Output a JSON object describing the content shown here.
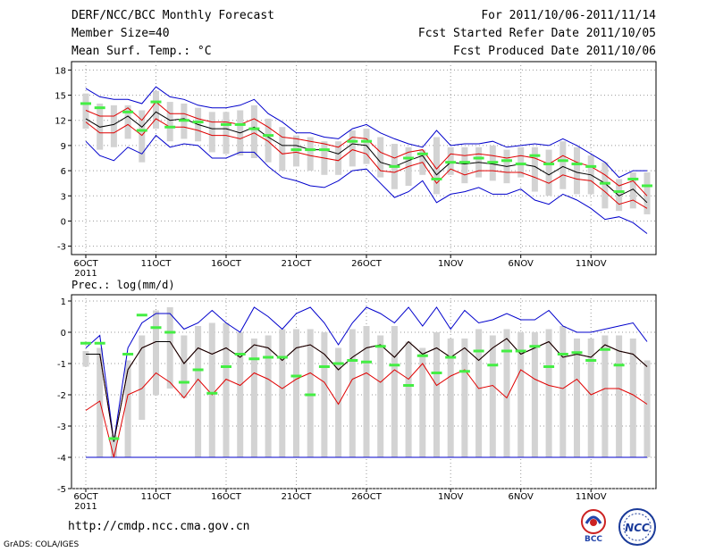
{
  "header": {
    "left": [
      "DERF/NCC/BCC Monthly Forecast",
      "Member Size=40",
      "Mean Surf. Temp.: °C"
    ],
    "right": [
      "For 2011/10/06-2011/11/14",
      "Fcst Started Refer Date 2011/10/05",
      "Fcst Produced Date 2011/10/06"
    ]
  },
  "footer": {
    "url": "http://cmdp.ncc.cma.gov.cn",
    "credit": "GrADS: COLA/IGES",
    "logo_bcc": "BCC",
    "logo_ncc": "NCC"
  },
  "colors": {
    "max": "#0000cc",
    "min": "#0000cc",
    "mean": "#000000",
    "p75": "#e00000",
    "p25": "#e00000",
    "box": "#d3d3d3",
    "marker": "#44ee44"
  },
  "chart_data": [
    {
      "id": "temp",
      "type": "line",
      "title": "Mean Surf. Temp.: °C",
      "ylim": [
        -4,
        19
      ],
      "yticks": [
        -3,
        0,
        3,
        6,
        9,
        12,
        15,
        18
      ],
      "xlim": [
        0,
        40
      ],
      "xticks": [
        {
          "day": 0,
          "label": "6OCT"
        },
        {
          "day": 5,
          "label": "11OCT"
        },
        {
          "day": 10,
          "label": "16OCT"
        },
        {
          "day": 15,
          "label": "21OCT"
        },
        {
          "day": 20,
          "label": "26OCT"
        },
        {
          "day": 26,
          "label": "1NOV"
        },
        {
          "day": 31,
          "label": "6NOV"
        },
        {
          "day": 36,
          "label": "11NOV"
        }
      ],
      "xyear": "2011",
      "max": [
        15.8,
        14.8,
        14.5,
        14.5,
        14.0,
        16.0,
        14.8,
        14.5,
        13.8,
        13.5,
        13.5,
        13.8,
        14.5,
        12.8,
        11.8,
        10.5,
        10.5,
        10.0,
        9.8,
        11.0,
        11.5,
        10.5,
        9.8,
        9.2,
        8.8,
        10.8,
        9.0,
        9.2,
        9.2,
        9.5,
        8.8,
        9.0,
        9.2,
        9.0,
        9.8,
        9.0,
        8.0,
        7.0,
        5.2,
        6.0,
        6.0
      ],
      "p75": [
        13.2,
        12.5,
        12.5,
        13.5,
        12.0,
        14.2,
        12.8,
        12.8,
        12.2,
        11.8,
        11.8,
        11.5,
        12.2,
        11.2,
        10.0,
        9.8,
        9.5,
        9.2,
        8.8,
        10.0,
        9.8,
        8.2,
        7.5,
        8.2,
        8.5,
        6.2,
        8.0,
        7.8,
        8.0,
        7.8,
        7.5,
        7.8,
        7.5,
        6.8,
        7.8,
        7.0,
        6.5,
        5.5,
        4.2,
        4.8,
        3.0
      ],
      "mean": [
        12.2,
        11.2,
        11.5,
        12.5,
        11.2,
        13.0,
        12.0,
        12.2,
        11.5,
        11.0,
        11.0,
        10.5,
        11.2,
        10.0,
        9.0,
        9.0,
        8.5,
        8.5,
        8.0,
        9.2,
        9.0,
        7.0,
        6.5,
        7.2,
        7.8,
        5.5,
        7.0,
        6.8,
        7.0,
        6.8,
        6.5,
        6.8,
        6.5,
        5.5,
        6.5,
        5.8,
        5.5,
        4.5,
        3.0,
        3.8,
        2.2
      ],
      "p25": [
        11.8,
        10.5,
        10.5,
        11.5,
        10.2,
        12.2,
        11.2,
        11.2,
        10.8,
        10.2,
        10.2,
        9.8,
        10.5,
        9.5,
        8.0,
        8.2,
        7.8,
        7.5,
        7.2,
        8.5,
        8.0,
        6.0,
        5.8,
        6.5,
        7.0,
        4.5,
        6.2,
        5.5,
        6.0,
        6.0,
        5.8,
        5.8,
        5.2,
        4.5,
        5.5,
        5.0,
        4.8,
        3.5,
        2.0,
        2.5,
        1.5
      ],
      "min": [
        9.5,
        7.8,
        7.2,
        8.8,
        8.0,
        10.2,
        8.8,
        9.2,
        9.0,
        7.5,
        7.5,
        8.2,
        8.2,
        6.5,
        5.2,
        4.8,
        4.2,
        4.0,
        4.8,
        6.0,
        6.2,
        4.5,
        2.8,
        3.5,
        4.8,
        2.2,
        3.2,
        3.5,
        4.0,
        3.2,
        3.2,
        3.8,
        2.5,
        2.0,
        3.2,
        2.5,
        1.5,
        0.2,
        0.5,
        -0.2,
        -1.5
      ],
      "box_hi": [
        15.2,
        14.0,
        13.8,
        13.8,
        13.2,
        15.5,
        14.2,
        14.0,
        13.5,
        13.0,
        13.0,
        13.2,
        13.8,
        12.2,
        11.2,
        10.2,
        10.0,
        9.5,
        9.5,
        10.8,
        11.0,
        10.0,
        9.2,
        8.8,
        8.5,
        10.0,
        8.8,
        8.8,
        8.8,
        9.0,
        8.5,
        8.8,
        8.8,
        8.5,
        9.5,
        8.8,
        7.8,
        7.0,
        5.0,
        5.8,
        5.8
      ],
      "box_lo": [
        11.0,
        8.5,
        8.8,
        9.8,
        7.0,
        11.0,
        9.5,
        9.8,
        9.5,
        8.2,
        8.0,
        7.8,
        7.5,
        7.0,
        6.0,
        6.5,
        6.0,
        5.5,
        5.5,
        6.5,
        6.8,
        5.2,
        3.8,
        4.2,
        5.5,
        3.2,
        5.5,
        4.5,
        5.2,
        4.8,
        4.5,
        5.2,
        3.5,
        3.0,
        3.8,
        3.2,
        3.2,
        1.5,
        1.2,
        1.5,
        0.8
      ],
      "obs": [
        14.0,
        13.5,
        null,
        13.0,
        10.8,
        14.2,
        11.2,
        12.0,
        11.8,
        null,
        11.5,
        11.5,
        11.0,
        10.2,
        null,
        8.5,
        8.5,
        8.5,
        null,
        9.5,
        9.5,
        null,
        6.5,
        7.5,
        8.0,
        5.0,
        7.0,
        7.0,
        7.5,
        7.0,
        7.2,
        6.8,
        7.8,
        6.8,
        7.2,
        6.8,
        6.5,
        4.5,
        3.5,
        5.0,
        4.2
      ]
    },
    {
      "id": "prec",
      "type": "line",
      "title": "Prec.: log(mm/d)",
      "ylim": [
        -5,
        1.2
      ],
      "yticks": [
        -5,
        -4,
        -3,
        -2,
        -1,
        0,
        1
      ],
      "xlim": [
        0,
        40
      ],
      "xticks": [
        {
          "day": 0,
          "label": "6OCT"
        },
        {
          "day": 5,
          "label": "11OCT"
        },
        {
          "day": 10,
          "label": "16OCT"
        },
        {
          "day": 15,
          "label": "21OCT"
        },
        {
          "day": 20,
          "label": "26OCT"
        },
        {
          "day": 26,
          "label": "1NOV"
        },
        {
          "day": 31,
          "label": "6NOV"
        },
        {
          "day": 36,
          "label": "11NOV"
        }
      ],
      "xyear": "2011",
      "max": [
        -0.5,
        -0.1,
        -3.5,
        -0.5,
        0.3,
        0.6,
        0.6,
        0.1,
        0.3,
        0.7,
        0.3,
        0.0,
        0.8,
        0.5,
        0.1,
        0.6,
        0.8,
        0.3,
        -0.4,
        0.3,
        0.8,
        0.6,
        0.3,
        0.8,
        0.2,
        0.8,
        0.1,
        0.7,
        0.3,
        0.4,
        0.6,
        0.4,
        0.4,
        0.7,
        0.2,
        0.0,
        0.0,
        0.1,
        0.2,
        0.3,
        -0.3
      ],
      "p75": [
        -0.7,
        -0.7,
        -3.5,
        -1.2,
        -0.5,
        -0.3,
        -0.3,
        -1.0,
        -0.5,
        -0.7,
        -0.5,
        -0.8,
        -0.4,
        -0.5,
        -0.9,
        -0.5,
        -0.4,
        -0.7,
        -1.2,
        -0.8,
        -0.5,
        -0.4,
        -0.8,
        -0.3,
        -0.7,
        -0.5,
        -0.8,
        -0.5,
        -0.9,
        -0.5,
        -0.2,
        -0.7,
        -0.5,
        -0.3,
        -0.8,
        -0.7,
        -0.8,
        -0.4,
        -0.6,
        -0.7,
        -1.1
      ],
      "mean": [
        -0.7,
        -0.7,
        -3.5,
        -1.2,
        -0.5,
        -0.3,
        -0.3,
        -1.0,
        -0.5,
        -0.7,
        -0.5,
        -0.8,
        -0.4,
        -0.5,
        -0.9,
        -0.5,
        -0.4,
        -0.7,
        -1.2,
        -0.8,
        -0.5,
        -0.4,
        -0.8,
        -0.3,
        -0.7,
        -0.5,
        -0.8,
        -0.5,
        -0.9,
        -0.5,
        -0.2,
        -0.7,
        -0.5,
        -0.3,
        -0.8,
        -0.7,
        -0.8,
        -0.4,
        -0.6,
        -0.7,
        -1.1
      ],
      "p25": [
        -2.5,
        -2.2,
        -4.0,
        -2.0,
        -1.8,
        -1.3,
        -1.6,
        -2.1,
        -1.5,
        -2.0,
        -1.5,
        -1.7,
        -1.3,
        -1.5,
        -1.8,
        -1.5,
        -1.3,
        -1.6,
        -2.3,
        -1.5,
        -1.3,
        -1.6,
        -1.2,
        -1.5,
        -1.0,
        -1.7,
        -1.4,
        -1.2,
        -1.8,
        -1.7,
        -2.1,
        -1.2,
        -1.5,
        -1.7,
        -1.8,
        -1.5,
        -2.0,
        -1.8,
        -1.8,
        -2.0,
        -2.3
      ],
      "min": [
        -4.0,
        -4.0,
        -4.0,
        -4.0,
        -4.0,
        -4.0,
        -4.0,
        -4.0,
        -4.0,
        -4.0,
        -4.0,
        -4.0,
        -4.0,
        -4.0,
        -4.0,
        -4.0,
        -4.0,
        -4.0,
        -4.0,
        -4.0,
        -4.0,
        -4.0,
        -4.0,
        -4.0,
        -4.0,
        -4.0,
        -4.0,
        -4.0,
        -4.0,
        -4.0,
        -4.0,
        -4.0,
        -4.0,
        -4.0,
        -4.0,
        -4.0,
        -4.0,
        -4.0,
        -4.0,
        -4.0,
        -4.0
      ],
      "box_hi": [
        -0.6,
        -0.5,
        -3.3,
        -0.9,
        -0.1,
        0.7,
        0.8,
        -0.1,
        0.2,
        0.3,
        0.3,
        0.0,
        -0.2,
        -0.1,
        0.1,
        0.1,
        0.1,
        0.0,
        -0.5,
        0.1,
        0.2,
        -0.1,
        0.2,
        -0.3,
        -0.5,
        0.0,
        -0.2,
        -0.2,
        0.1,
        -0.1,
        0.1,
        0.0,
        0.0,
        0.1,
        0.2,
        -0.2,
        -0.2,
        -0.1,
        -0.1,
        -0.2,
        -0.9
      ],
      "box_lo": [
        -1.1,
        -4.0,
        -4.0,
        -4.0,
        -2.8,
        -2.0,
        -1.8,
        -2.1,
        -4.0,
        -4.0,
        -4.0,
        -4.0,
        -4.0,
        -4.0,
        -4.0,
        -4.0,
        -4.0,
        -4.0,
        -4.0,
        -4.0,
        -4.0,
        -4.0,
        -4.0,
        -4.0,
        -4.0,
        -4.0,
        -4.0,
        -4.0,
        -4.0,
        -4.0,
        -4.0,
        -4.0,
        -4.0,
        -4.0,
        -4.0,
        -4.0,
        -4.0,
        -4.0,
        -4.0,
        -4.0,
        -4.0
      ],
      "obs": [
        -0.35,
        -0.35,
        -3.4,
        -0.7,
        0.55,
        0.15,
        0.0,
        -1.6,
        -1.2,
        -1.95,
        -1.1,
        -0.7,
        -0.85,
        -0.8,
        -0.8,
        -1.4,
        -2.0,
        -1.1,
        -1.0,
        -0.9,
        -0.95,
        -0.45,
        -1.05,
        -1.7,
        -0.75,
        -1.3,
        -0.8,
        -1.25,
        -0.6,
        -1.05,
        -0.6,
        -0.6,
        -0.45,
        -1.1,
        -0.7,
        -0.65,
        -0.9,
        -0.55,
        -1.05,
        null,
        null
      ]
    }
  ]
}
